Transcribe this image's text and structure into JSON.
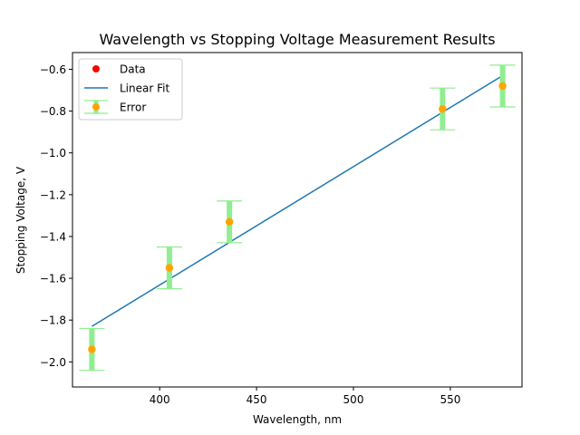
{
  "chart_data": {
    "type": "scatter",
    "title": "Wavelength vs Stopping Voltage Measurement Results",
    "xlabel": "Wavelength, nm",
    "ylabel": "Stopping Voltage, V",
    "xlim": [
      355,
      587
    ],
    "ylim": [
      -2.12,
      -0.52
    ],
    "xticks": [
      400,
      450,
      500,
      550
    ],
    "yticks": [
      -2.0,
      -1.8,
      -1.6,
      -1.4,
      -1.2,
      -1.0,
      -0.8,
      -0.6
    ],
    "xtick_labels": [
      "400",
      "450",
      "500",
      "550"
    ],
    "ytick_labels": [
      "−2.0",
      "−1.8",
      "−1.6",
      "−1.4",
      "−1.2",
      "−1.0",
      "−0.8",
      "−0.6"
    ],
    "legend_position": "top-left",
    "grid": false,
    "series": [
      {
        "name": "Data",
        "kind": "scatter",
        "color": "#ff0000",
        "x": [
          365,
          405,
          436,
          546,
          577
        ],
        "y": [
          -1.94,
          -1.55,
          -1.33,
          -0.79,
          -0.68
        ]
      },
      {
        "name": "Linear Fit",
        "kind": "line",
        "color": "#1f77b4",
        "x": [
          365,
          577
        ],
        "y": [
          -1.83,
          -0.63
        ]
      },
      {
        "name": "Error",
        "kind": "errorbar",
        "color": "#90ee90",
        "marker_color": "#ffa500",
        "x": [
          365,
          405,
          436,
          546,
          577
        ],
        "y": [
          -1.94,
          -1.55,
          -1.33,
          -0.79,
          -0.68
        ],
        "yerr": [
          0.1,
          0.1,
          0.1,
          0.1,
          0.1
        ]
      }
    ]
  }
}
